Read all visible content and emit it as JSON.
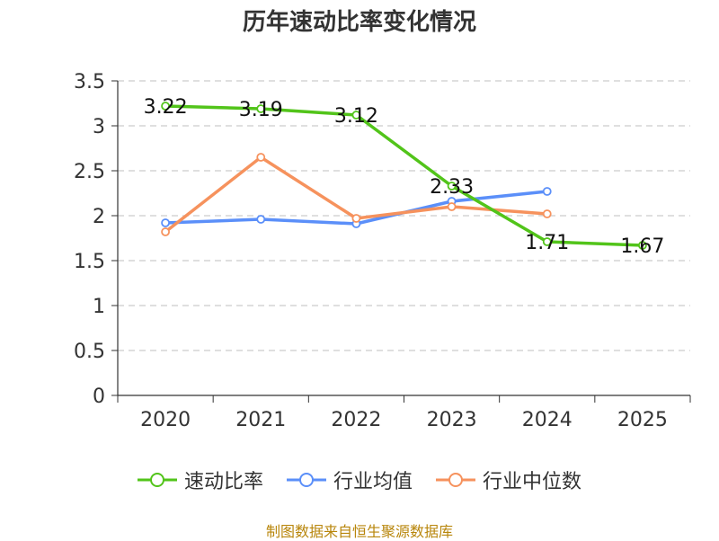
{
  "chart_data": {
    "type": "line",
    "title": "历年速动比率变化情况",
    "categories": [
      "2020",
      "2021",
      "2022",
      "2023",
      "2024",
      "2025"
    ],
    "ylim": [
      0,
      3.5
    ],
    "yticks": [
      "0",
      "0.5",
      "1",
      "1.5",
      "2",
      "2.5",
      "3",
      "3.5"
    ],
    "grid": true,
    "legend_position": "bottom",
    "series": [
      {
        "name": "速动比率",
        "color": "#52c41a",
        "values": [
          3.22,
          3.19,
          3.12,
          2.33,
          1.71,
          1.67
        ],
        "labels": [
          "3.22",
          "3.19",
          "3.12",
          "2.33",
          "1.71",
          "1.67"
        ]
      },
      {
        "name": "行业均值",
        "color": "#5b8ff9",
        "values": [
          1.92,
          1.96,
          1.91,
          2.16,
          2.27,
          null
        ]
      },
      {
        "name": "行业中位数",
        "color": "#f6925d",
        "values": [
          1.82,
          2.65,
          1.97,
          2.1,
          2.02,
          null
        ]
      }
    ]
  },
  "footer": {
    "source": "制图数据来自恒生聚源数据库"
  }
}
